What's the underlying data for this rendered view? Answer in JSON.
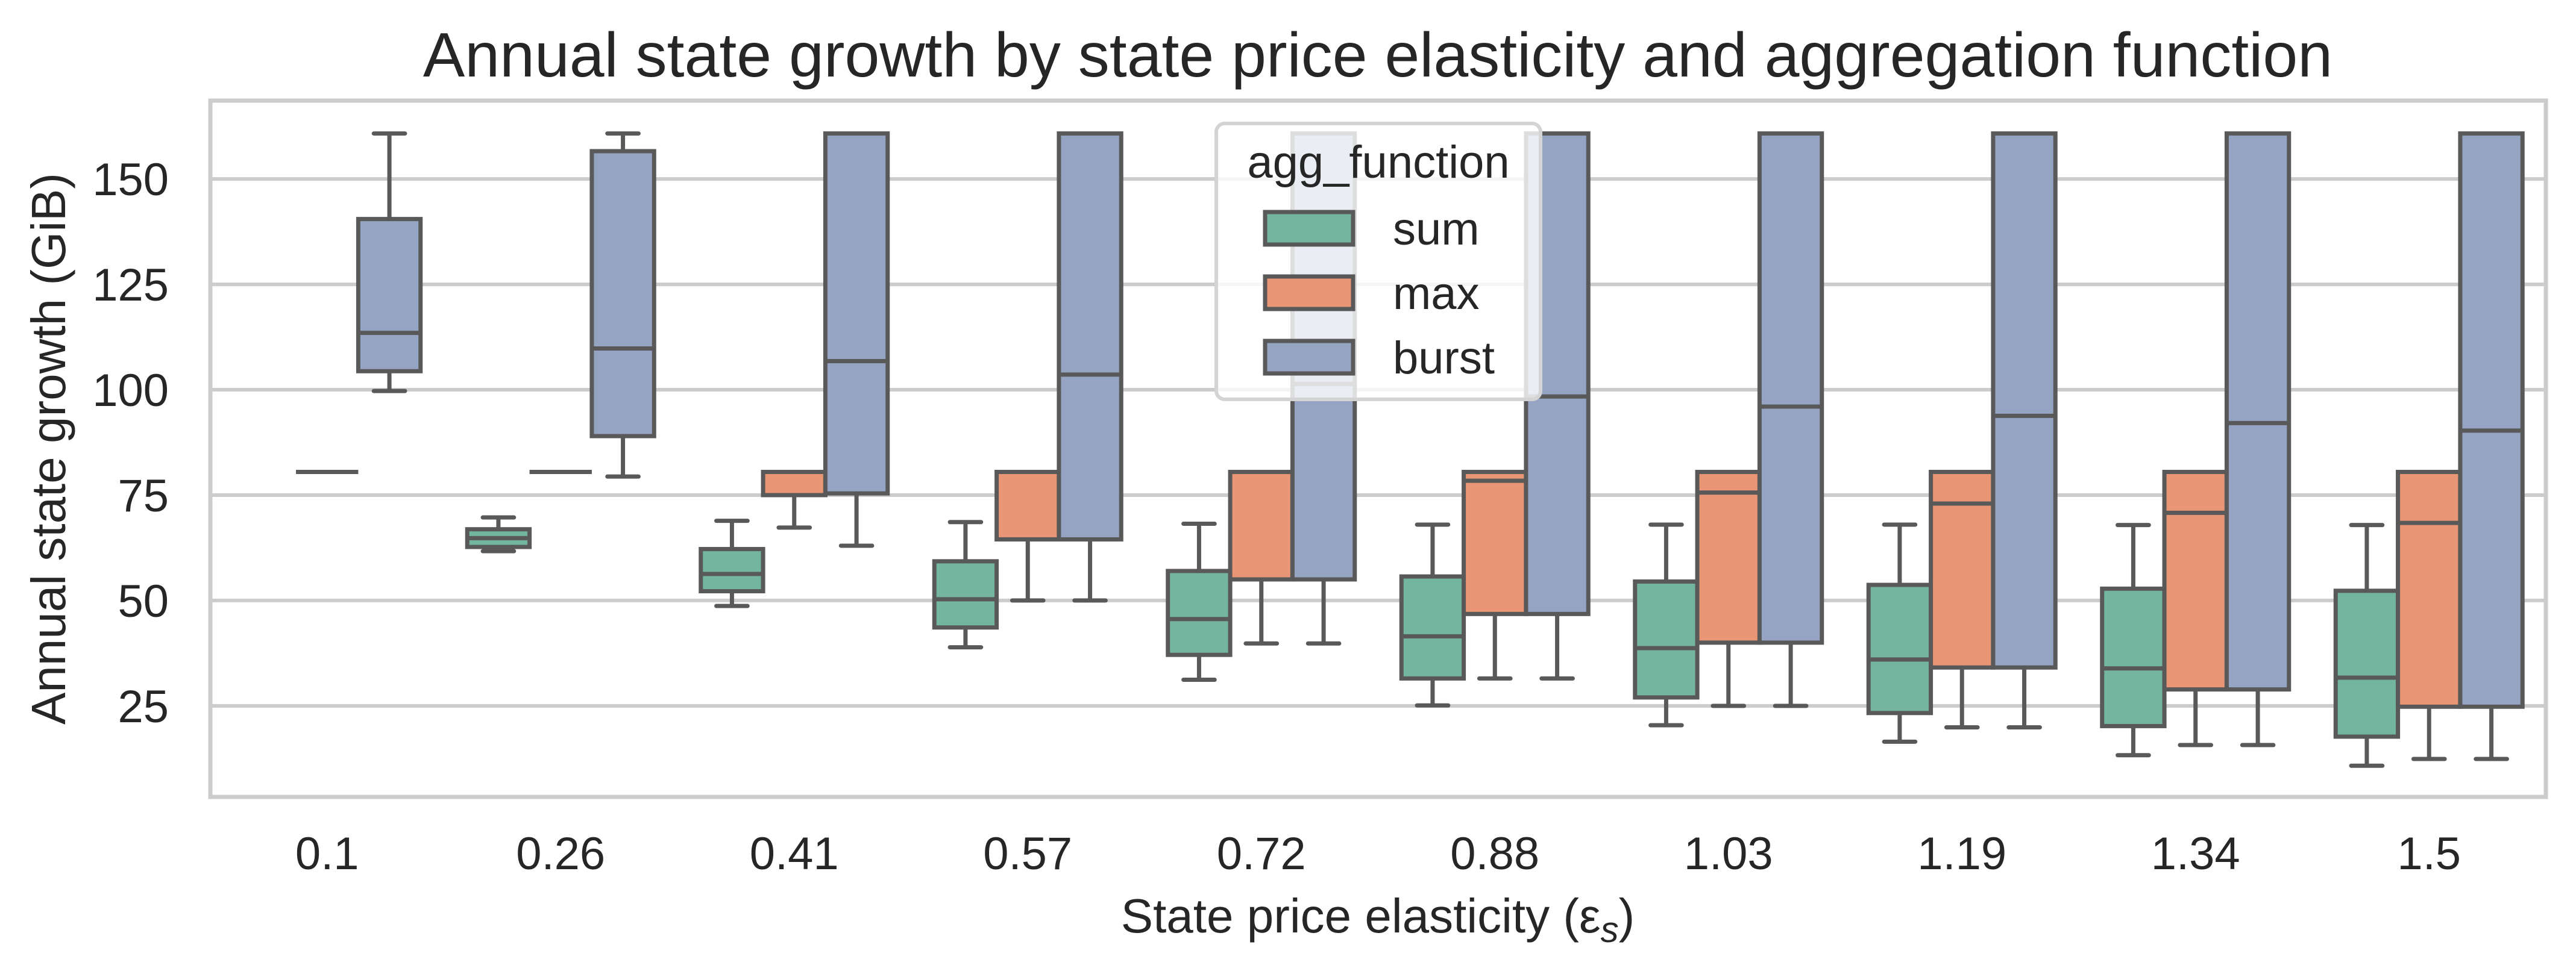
{
  "chart_data": {
    "type": "box",
    "title": "Annual state growth by state price elasticity and aggregation function",
    "xlabel": "State price elasticity (ε",
    "xlabel_subscript": "s",
    "xlabel_suffix": ")",
    "ylabel": "Annual state growth (GiB)",
    "ylim": [
      3.4,
      168.6
    ],
    "yticks": [
      25,
      50,
      75,
      100,
      125,
      150
    ],
    "ytick_labels": [
      "25",
      "50",
      "75",
      "100",
      "125",
      "150"
    ],
    "grid": "horizontal",
    "categories": [
      "0.1",
      "0.26",
      "0.41",
      "0.57",
      "0.72",
      "0.88",
      "1.03",
      "1.19",
      "1.34",
      "1.5"
    ],
    "legend": {
      "title": "agg_function",
      "placement": "upper-center",
      "entries": [
        "sum",
        "max",
        "burst"
      ]
    },
    "series": [
      {
        "name": "sum",
        "color": "#74b5a0",
        "boxes": [
          null,
          {
            "whislo": 61.7,
            "q1": 62.7,
            "med": 64.8,
            "q3": 66.9,
            "whishi": 69.7
          },
          {
            "whislo": 48.7,
            "q1": 52.2,
            "med": 56.3,
            "q3": 62.2,
            "whishi": 68.9
          },
          {
            "whislo": 38.9,
            "q1": 43.6,
            "med": 50.3,
            "q3": 59.3,
            "whishi": 68.6
          },
          {
            "whislo": 31.2,
            "q1": 37.1,
            "med": 45.6,
            "q3": 57.0,
            "whishi": 68.2
          },
          {
            "whislo": 25.1,
            "q1": 31.5,
            "med": 41.5,
            "q3": 55.7,
            "whishi": 68.0
          },
          {
            "whislo": 20.4,
            "q1": 27.0,
            "med": 38.7,
            "q3": 54.5,
            "whishi": 68.0
          },
          {
            "whislo": 16.5,
            "q1": 23.3,
            "med": 36.0,
            "q3": 53.7,
            "whishi": 68.0
          },
          {
            "whislo": 13.3,
            "q1": 20.2,
            "med": 33.9,
            "q3": 52.8,
            "whishi": 67.9
          },
          {
            "whislo": 10.8,
            "q1": 17.7,
            "med": 31.7,
            "q3": 52.3,
            "whishi": 67.9
          }
        ]
      },
      {
        "name": "max",
        "color": "#e89675",
        "boxes": [
          {
            "whislo": 80.5,
            "q1": 80.5,
            "med": 80.5,
            "q3": 80.5,
            "whishi": 80.5
          },
          {
            "whislo": 80.5,
            "q1": 80.5,
            "med": 80.5,
            "q3": 80.5,
            "whishi": 80.5
          },
          {
            "whislo": 67.3,
            "q1": 75.0,
            "med": 80.5,
            "q3": 80.5,
            "whishi": 80.5
          },
          {
            "whislo": 50.0,
            "q1": 64.5,
            "med": 80.5,
            "q3": 80.5,
            "whishi": 80.5
          },
          {
            "whislo": 39.8,
            "q1": 55.0,
            "med": 80.5,
            "q3": 80.5,
            "whishi": 80.5
          },
          {
            "whislo": 31.5,
            "q1": 46.8,
            "med": 78.4,
            "q3": 80.5,
            "whishi": 80.5
          },
          {
            "whislo": 25.0,
            "q1": 40.0,
            "med": 75.6,
            "q3": 80.5,
            "whishi": 80.5
          },
          {
            "whislo": 19.9,
            "q1": 34.1,
            "med": 73.0,
            "q3": 80.5,
            "whishi": 80.5
          },
          {
            "whislo": 15.7,
            "q1": 28.9,
            "med": 70.8,
            "q3": 80.5,
            "whishi": 80.5
          },
          {
            "whislo": 12.4,
            "q1": 24.8,
            "med": 68.4,
            "q3": 80.5,
            "whishi": 80.5
          }
        ]
      },
      {
        "name": "burst",
        "color": "#95a4c3",
        "boxes": [
          {
            "whislo": 99.7,
            "q1": 104.4,
            "med": 113.5,
            "q3": 140.5,
            "whishi": 160.8
          },
          {
            "whislo": 79.4,
            "q1": 89.0,
            "med": 109.8,
            "q3": 156.6,
            "whishi": 160.8
          },
          {
            "whislo": 63.0,
            "q1": 75.4,
            "med": 106.8,
            "q3": 160.8,
            "whishi": 160.8
          },
          {
            "whislo": 50.0,
            "q1": 64.5,
            "med": 103.6,
            "q3": 160.8,
            "whishi": 160.8
          },
          {
            "whislo": 39.8,
            "q1": 55.0,
            "med": 101.4,
            "q3": 160.8,
            "whishi": 160.8
          },
          {
            "whislo": 31.5,
            "q1": 46.8,
            "med": 98.4,
            "q3": 160.8,
            "whishi": 160.8
          },
          {
            "whislo": 25.0,
            "q1": 40.0,
            "med": 96.0,
            "q3": 160.8,
            "whishi": 160.8
          },
          {
            "whislo": 19.9,
            "q1": 34.1,
            "med": 93.8,
            "q3": 160.8,
            "whishi": 160.8
          },
          {
            "whislo": 15.7,
            "q1": 28.9,
            "med": 92.1,
            "q3": 160.8,
            "whishi": 160.8
          },
          {
            "whislo": 12.4,
            "q1": 24.8,
            "med": 90.3,
            "q3": 160.8,
            "whishi": 160.8
          }
        ]
      }
    ],
    "edge_color": "#595959",
    "grid_color": "#cccccc",
    "text_color": "#262626"
  }
}
